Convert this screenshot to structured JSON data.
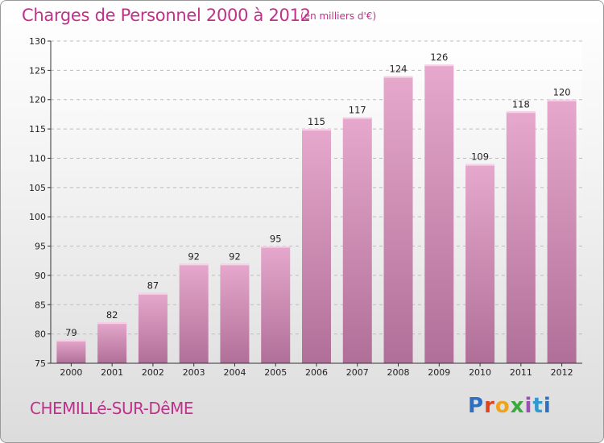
{
  "header": {
    "title": "Charges de Personnel 2000 à 2012",
    "subtitle": "(en milliers d'€)"
  },
  "footer": {
    "commune": "CHEMILLé-SUR-DêME",
    "logo": "Proxiti"
  },
  "colors": {
    "bar_top": "#e6a8cc",
    "bar_bottom": "#b06f98",
    "title": "#c0318a"
  },
  "chart_data": {
    "type": "bar",
    "title": "Charges de Personnel 2000 à 2012",
    "subtitle": "(en milliers d'€)",
    "categories": [
      "2000",
      "2001",
      "2002",
      "2003",
      "2004",
      "2005",
      "2006",
      "2007",
      "2008",
      "2009",
      "2010",
      "2011",
      "2012"
    ],
    "values": [
      79,
      82,
      87,
      92,
      92,
      95,
      115,
      117,
      124,
      126,
      109,
      118,
      120
    ],
    "ylim": [
      75,
      130
    ],
    "yticks": [
      75,
      80,
      85,
      90,
      95,
      100,
      105,
      110,
      115,
      120,
      125,
      130
    ],
    "grid": true
  }
}
